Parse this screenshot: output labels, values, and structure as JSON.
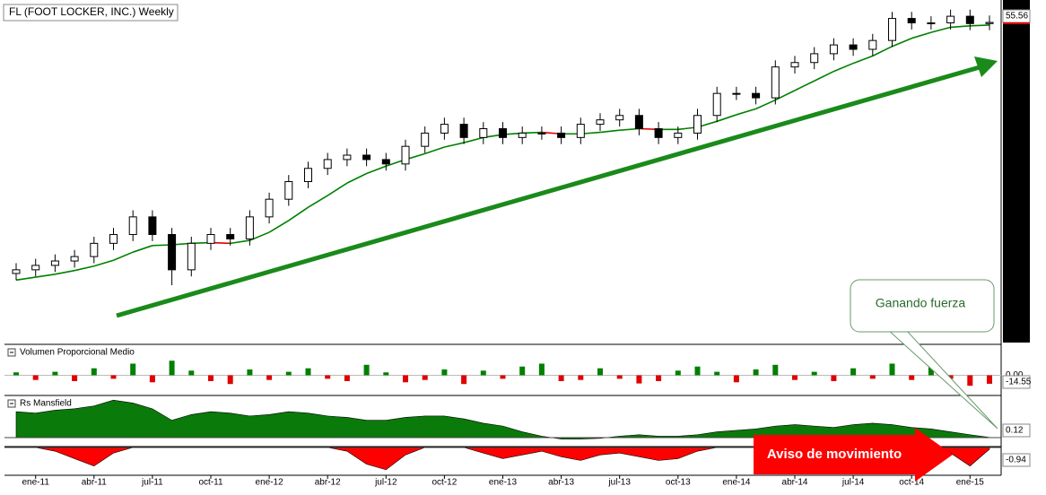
{
  "chart_data": [
    {
      "type": "candlestick",
      "title": "FL (FOOT LOCKER, INC.) Weekly",
      "categories": [
        null,
        "ene-11",
        null,
        null,
        "abr-11",
        null,
        null,
        "jul-11",
        null,
        null,
        "oct-11",
        null,
        null,
        "ene-12",
        null,
        null,
        "abr-12",
        null,
        null,
        "jul-12",
        null,
        null,
        "oct-12",
        null,
        null,
        "ene-13",
        null,
        null,
        "abr-13",
        null,
        null,
        "jul-13",
        null,
        null,
        "oct-13",
        null,
        null,
        "ene-14",
        null,
        null,
        "abr-14",
        null,
        null,
        "jul-14",
        null,
        null,
        "oct-14",
        null,
        null,
        "ene-15",
        null
      ],
      "open": [
        21.4,
        21.9,
        22.5,
        23.1,
        23.7,
        25.5,
        26.7,
        29.1,
        26.7,
        21.9,
        25.5,
        26.7,
        26.1,
        29.1,
        31.5,
        33.9,
        35.7,
        36.9,
        37.5,
        36.9,
        36.3,
        38.7,
        40.5,
        41.7,
        39.9,
        41.1,
        39.9,
        40.5,
        40.5,
        39.9,
        41.7,
        42.3,
        42.9,
        41.1,
        39.9,
        40.5,
        42.9,
        45.9,
        45.9,
        45.3,
        49.5,
        50.1,
        51.3,
        52.5,
        51.9,
        53.1,
        56.1,
        55.5,
        55.5,
        56.4,
        55.4
      ],
      "high": [
        22.8,
        23.4,
        24.0,
        24.6,
        26.4,
        27.6,
        30.0,
        30.0,
        27.6,
        26.4,
        27.6,
        27.6,
        30.0,
        32.4,
        34.8,
        36.6,
        37.8,
        38.4,
        38.4,
        37.8,
        39.6,
        41.4,
        42.6,
        42.6,
        42.0,
        42.0,
        41.4,
        41.4,
        41.4,
        42.6,
        43.2,
        43.8,
        43.8,
        42.0,
        41.4,
        43.8,
        46.8,
        46.8,
        46.8,
        50.4,
        51.0,
        52.2,
        53.4,
        53.4,
        54.0,
        57.0,
        57.0,
        56.4,
        57.3,
        57.3,
        56.5
      ],
      "low": [
        20.5,
        21.0,
        21.6,
        22.2,
        22.8,
        24.6,
        25.8,
        25.8,
        19.8,
        21.0,
        24.6,
        25.2,
        25.2,
        28.2,
        30.6,
        33.0,
        34.8,
        36.0,
        36.0,
        35.4,
        35.4,
        37.8,
        39.6,
        39.0,
        39.0,
        39.0,
        39.0,
        39.6,
        39.0,
        39.0,
        40.8,
        41.4,
        40.2,
        39.0,
        39.0,
        39.6,
        42.0,
        45.0,
        44.4,
        44.4,
        48.6,
        49.2,
        50.4,
        51.0,
        51.0,
        52.2,
        54.6,
        54.6,
        54.6,
        54.5,
        54.5
      ],
      "close": [
        21.9,
        22.5,
        23.1,
        23.7,
        25.5,
        26.7,
        29.1,
        26.7,
        21.9,
        25.5,
        26.7,
        26.1,
        29.1,
        31.5,
        33.9,
        35.7,
        36.9,
        37.5,
        36.9,
        36.3,
        38.7,
        40.5,
        41.7,
        39.9,
        41.1,
        39.9,
        40.5,
        40.5,
        39.9,
        41.7,
        42.3,
        42.9,
        41.1,
        39.9,
        40.5,
        42.9,
        45.9,
        45.9,
        45.3,
        49.5,
        50.1,
        51.3,
        52.5,
        51.9,
        53.1,
        56.1,
        55.5,
        55.5,
        56.4,
        55.4,
        55.56
      ],
      "ma": [
        20.5,
        20.9,
        21.3,
        21.8,
        22.4,
        23.2,
        24.3,
        25.2,
        25.3,
        25.5,
        25.6,
        25.5,
        25.9,
        27.0,
        28.6,
        30.4,
        32.0,
        33.7,
        35.0,
        36.0,
        36.9,
        37.7,
        38.6,
        39.2,
        39.9,
        40.3,
        40.5,
        40.6,
        40.4,
        40.4,
        40.6,
        40.9,
        41.1,
        41.0,
        41.0,
        41.3,
        42.1,
        43.0,
        43.8,
        45.0,
        46.3,
        47.6,
        48.9,
        50.0,
        51.0,
        52.3,
        53.4,
        54.2,
        54.9,
        55.1,
        55.2
      ],
      "ma_colors": {
        "rising": "#008000",
        "falling": "#e00000"
      },
      "ylim": [
        12,
        58
      ],
      "annotations": [
        "Ganando fuerza",
        "Aviso de movimiento"
      ]
    },
    {
      "type": "bar",
      "title": "Volumen Proporcional Medio",
      "values": [
        5,
        -8,
        6,
        -10,
        12,
        -6,
        20,
        -12,
        25,
        8,
        -10,
        -15,
        10,
        -8,
        6,
        12,
        -6,
        -10,
        18,
        5,
        -12,
        -8,
        10,
        -15,
        8,
        -6,
        15,
        20,
        -10,
        -8,
        12,
        -6,
        -14,
        -10,
        8,
        15,
        6,
        -12,
        10,
        18,
        -8,
        6,
        -10,
        12,
        -6,
        20,
        -8,
        14,
        -6,
        -18,
        -14.55
      ],
      "colors": {
        "positive": "#008000",
        "negative": "#e00000"
      },
      "ylim": [
        -30,
        30
      ],
      "yticks": [
        {
          "value": 0,
          "label": "0.00"
        }
      ]
    },
    {
      "type": "area",
      "title": "Rs Mansfield",
      "color": "#0a7a0a",
      "values": [
        18,
        17,
        19,
        20,
        22,
        26,
        24,
        20,
        12,
        16,
        18,
        17,
        15,
        16,
        18,
        17,
        15,
        14,
        12,
        12,
        14,
        15,
        15,
        13,
        10,
        8,
        4,
        1,
        -1,
        -1,
        -0.5,
        1,
        2,
        1,
        1,
        2,
        4,
        5,
        6,
        8,
        9,
        8,
        7,
        9,
        10,
        9,
        7,
        6,
        4,
        2,
        0.12
      ],
      "ylim": [
        -5,
        28
      ]
    },
    {
      "type": "area",
      "color": "#ff0000",
      "values": [
        0,
        0,
        -2,
        -6,
        -10,
        -3,
        0,
        0,
        0,
        0,
        0,
        0,
        0,
        0,
        0,
        0,
        0,
        -2,
        -9,
        -12,
        -4,
        0,
        0,
        0,
        -3,
        -6,
        -4,
        -2,
        -5,
        -7,
        -4,
        -3,
        -5,
        -7,
        -6,
        -2,
        0,
        0,
        0,
        0,
        0,
        0,
        0,
        0,
        0,
        0,
        0,
        0,
        -3,
        -10,
        -0.94
      ],
      "ylim": [
        -14,
        0
      ]
    }
  ]
}
